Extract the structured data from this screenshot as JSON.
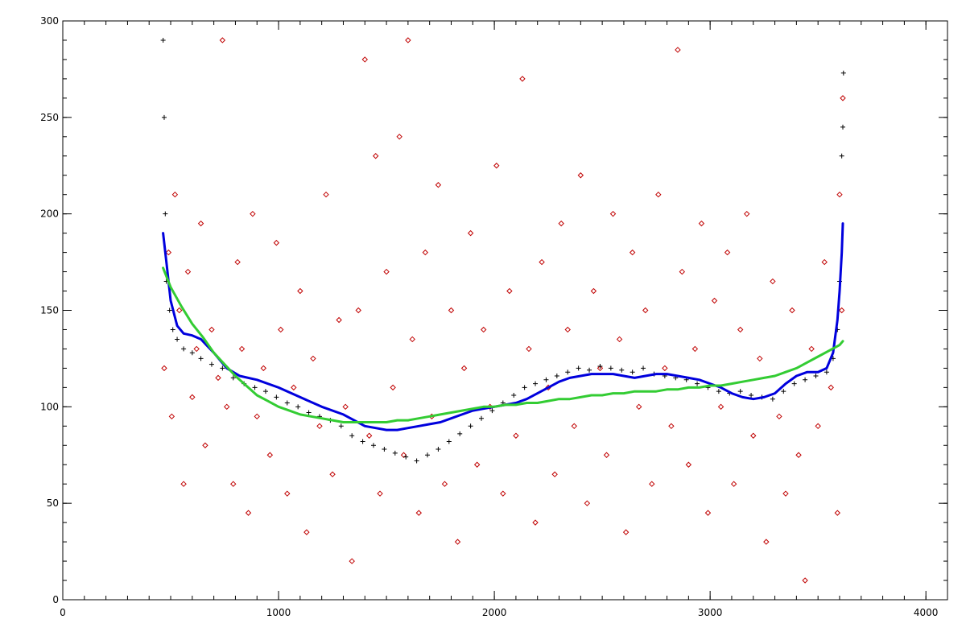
{
  "chart_data": {
    "type": "scatter",
    "title": "",
    "xlabel": "",
    "ylabel": "",
    "xlim": [
      0,
      4100
    ],
    "ylim": [
      0,
      300
    ],
    "grid": false,
    "legend": "none",
    "x_ticks": [
      0,
      1000,
      2000,
      3000,
      4000
    ],
    "x_tick_labels": [
      "0",
      "1000",
      "2000",
      "3000",
      "4000"
    ],
    "y_ticks": [
      0,
      50,
      100,
      150,
      200,
      250,
      300
    ],
    "y_tick_labels": [
      "0",
      "50",
      "100",
      "150",
      "200",
      "250",
      "300"
    ],
    "x_minor_step": 100,
    "y_minor_step": 10,
    "series": [
      {
        "marker": "diamond",
        "color": "#c00000",
        "points": [
          [
            470,
            120
          ],
          [
            490,
            180
          ],
          [
            505,
            95
          ],
          [
            520,
            210
          ],
          [
            540,
            150
          ],
          [
            560,
            60
          ],
          [
            580,
            170
          ],
          [
            600,
            105
          ],
          [
            620,
            130
          ],
          [
            640,
            195
          ],
          [
            660,
            80
          ],
          [
            690,
            140
          ],
          [
            720,
            115
          ],
          [
            740,
            290
          ],
          [
            760,
            100
          ],
          [
            790,
            60
          ],
          [
            810,
            175
          ],
          [
            830,
            130
          ],
          [
            860,
            45
          ],
          [
            880,
            200
          ],
          [
            900,
            95
          ],
          [
            930,
            120
          ],
          [
            960,
            75
          ],
          [
            990,
            185
          ],
          [
            1010,
            140
          ],
          [
            1040,
            55
          ],
          [
            1070,
            110
          ],
          [
            1100,
            160
          ],
          [
            1130,
            35
          ],
          [
            1160,
            125
          ],
          [
            1190,
            90
          ],
          [
            1220,
            210
          ],
          [
            1250,
            65
          ],
          [
            1280,
            145
          ],
          [
            1310,
            100
          ],
          [
            1340,
            20
          ],
          [
            1370,
            150
          ],
          [
            1400,
            280
          ],
          [
            1420,
            85
          ],
          [
            1450,
            230
          ],
          [
            1470,
            55
          ],
          [
            1500,
            170
          ],
          [
            1530,
            110
          ],
          [
            1560,
            240
          ],
          [
            1580,
            75
          ],
          [
            1600,
            290
          ],
          [
            1620,
            135
          ],
          [
            1650,
            45
          ],
          [
            1680,
            180
          ],
          [
            1710,
            95
          ],
          [
            1740,
            215
          ],
          [
            1770,
            60
          ],
          [
            1800,
            150
          ],
          [
            1830,
            30
          ],
          [
            1860,
            120
          ],
          [
            1890,
            190
          ],
          [
            1920,
            70
          ],
          [
            1950,
            140
          ],
          [
            1980,
            100
          ],
          [
            2010,
            225
          ],
          [
            2040,
            55
          ],
          [
            2070,
            160
          ],
          [
            2100,
            85
          ],
          [
            2130,
            270
          ],
          [
            2160,
            130
          ],
          [
            2190,
            40
          ],
          [
            2220,
            175
          ],
          [
            2250,
            110
          ],
          [
            2280,
            65
          ],
          [
            2310,
            195
          ],
          [
            2340,
            140
          ],
          [
            2370,
            90
          ],
          [
            2400,
            220
          ],
          [
            2430,
            50
          ],
          [
            2460,
            160
          ],
          [
            2490,
            120
          ],
          [
            2520,
            75
          ],
          [
            2550,
            200
          ],
          [
            2580,
            135
          ],
          [
            2610,
            35
          ],
          [
            2640,
            180
          ],
          [
            2670,
            100
          ],
          [
            2700,
            150
          ],
          [
            2730,
            60
          ],
          [
            2760,
            210
          ],
          [
            2790,
            120
          ],
          [
            2820,
            90
          ],
          [
            2850,
            285
          ],
          [
            2870,
            170
          ],
          [
            2900,
            70
          ],
          [
            2930,
            130
          ],
          [
            2960,
            195
          ],
          [
            2990,
            45
          ],
          [
            3020,
            155
          ],
          [
            3050,
            100
          ],
          [
            3080,
            180
          ],
          [
            3110,
            60
          ],
          [
            3140,
            140
          ],
          [
            3170,
            200
          ],
          [
            3200,
            85
          ],
          [
            3230,
            125
          ],
          [
            3260,
            30
          ],
          [
            3290,
            165
          ],
          [
            3320,
            95
          ],
          [
            3350,
            55
          ],
          [
            3380,
            150
          ],
          [
            3410,
            75
          ],
          [
            3440,
            10
          ],
          [
            3470,
            130
          ],
          [
            3500,
            90
          ],
          [
            3530,
            175
          ],
          [
            3560,
            110
          ],
          [
            3590,
            45
          ],
          [
            3600,
            210
          ],
          [
            3610,
            150
          ],
          [
            3615,
            260
          ]
        ]
      },
      {
        "marker": "plus",
        "color": "#000000",
        "points": [
          [
            465,
            290
          ],
          [
            470,
            250
          ],
          [
            475,
            200
          ],
          [
            480,
            165
          ],
          [
            495,
            150
          ],
          [
            510,
            140
          ],
          [
            530,
            135
          ],
          [
            560,
            130
          ],
          [
            600,
            128
          ],
          [
            640,
            125
          ],
          [
            690,
            122
          ],
          [
            740,
            120
          ],
          [
            790,
            115
          ],
          [
            840,
            112
          ],
          [
            890,
            110
          ],
          [
            940,
            108
          ],
          [
            990,
            105
          ],
          [
            1040,
            102
          ],
          [
            1090,
            100
          ],
          [
            1140,
            97
          ],
          [
            1190,
            95
          ],
          [
            1240,
            93
          ],
          [
            1290,
            90
          ],
          [
            1340,
            85
          ],
          [
            1390,
            82
          ],
          [
            1440,
            80
          ],
          [
            1490,
            78
          ],
          [
            1540,
            76
          ],
          [
            1590,
            74
          ],
          [
            1640,
            72
          ],
          [
            1690,
            75
          ],
          [
            1740,
            78
          ],
          [
            1790,
            82
          ],
          [
            1840,
            86
          ],
          [
            1890,
            90
          ],
          [
            1940,
            94
          ],
          [
            1990,
            98
          ],
          [
            2040,
            102
          ],
          [
            2090,
            106
          ],
          [
            2140,
            110
          ],
          [
            2190,
            112
          ],
          [
            2240,
            114
          ],
          [
            2290,
            116
          ],
          [
            2340,
            118
          ],
          [
            2390,
            120
          ],
          [
            2440,
            119
          ],
          [
            2490,
            121
          ],
          [
            2540,
            120
          ],
          [
            2590,
            119
          ],
          [
            2640,
            118
          ],
          [
            2690,
            120
          ],
          [
            2740,
            117
          ],
          [
            2790,
            116
          ],
          [
            2840,
            115
          ],
          [
            2890,
            114
          ],
          [
            2940,
            112
          ],
          [
            2990,
            110
          ],
          [
            3040,
            108
          ],
          [
            3090,
            107
          ],
          [
            3140,
            108
          ],
          [
            3190,
            106
          ],
          [
            3240,
            105
          ],
          [
            3290,
            104
          ],
          [
            3340,
            108
          ],
          [
            3390,
            112
          ],
          [
            3440,
            114
          ],
          [
            3490,
            116
          ],
          [
            3540,
            118
          ],
          [
            3570,
            125
          ],
          [
            3590,
            140
          ],
          [
            3600,
            165
          ],
          [
            3610,
            230
          ],
          [
            3615,
            245
          ],
          [
            3618,
            273
          ]
        ]
      }
    ],
    "lines": [
      {
        "color": "#0000dd",
        "points": [
          [
            465,
            190
          ],
          [
            480,
            175
          ],
          [
            500,
            155
          ],
          [
            530,
            142
          ],
          [
            560,
            138
          ],
          [
            600,
            137
          ],
          [
            640,
            135
          ],
          [
            700,
            128
          ],
          [
            760,
            120
          ],
          [
            820,
            116
          ],
          [
            900,
            114
          ],
          [
            1000,
            110
          ],
          [
            1100,
            105
          ],
          [
            1200,
            100
          ],
          [
            1300,
            96
          ],
          [
            1350,
            93
          ],
          [
            1400,
            90
          ],
          [
            1450,
            89
          ],
          [
            1500,
            88
          ],
          [
            1550,
            88
          ],
          [
            1600,
            89
          ],
          [
            1650,
            90
          ],
          [
            1700,
            91
          ],
          [
            1750,
            92
          ],
          [
            1800,
            94
          ],
          [
            1850,
            96
          ],
          [
            1900,
            98
          ],
          [
            1950,
            99
          ],
          [
            2000,
            100
          ],
          [
            2050,
            101
          ],
          [
            2100,
            102
          ],
          [
            2150,
            104
          ],
          [
            2200,
            107
          ],
          [
            2250,
            110
          ],
          [
            2300,
            113
          ],
          [
            2350,
            115
          ],
          [
            2400,
            116
          ],
          [
            2450,
            117
          ],
          [
            2500,
            117
          ],
          [
            2550,
            117
          ],
          [
            2600,
            116
          ],
          [
            2650,
            115
          ],
          [
            2700,
            116
          ],
          [
            2750,
            117
          ],
          [
            2800,
            117
          ],
          [
            2850,
            116
          ],
          [
            2900,
            115
          ],
          [
            2950,
            114
          ],
          [
            3000,
            112
          ],
          [
            3050,
            110
          ],
          [
            3100,
            107
          ],
          [
            3150,
            105
          ],
          [
            3200,
            104
          ],
          [
            3250,
            105
          ],
          [
            3300,
            107
          ],
          [
            3350,
            112
          ],
          [
            3400,
            116
          ],
          [
            3450,
            118
          ],
          [
            3500,
            118
          ],
          [
            3540,
            120
          ],
          [
            3570,
            128
          ],
          [
            3590,
            145
          ],
          [
            3600,
            160
          ],
          [
            3610,
            180
          ],
          [
            3615,
            195
          ]
        ]
      },
      {
        "color": "#33cc33",
        "points": [
          [
            465,
            172
          ],
          [
            500,
            162
          ],
          [
            550,
            152
          ],
          [
            600,
            143
          ],
          [
            650,
            136
          ],
          [
            700,
            128
          ],
          [
            750,
            122
          ],
          [
            800,
            116
          ],
          [
            850,
            111
          ],
          [
            900,
            106
          ],
          [
            950,
            103
          ],
          [
            1000,
            100
          ],
          [
            1050,
            98
          ],
          [
            1100,
            96
          ],
          [
            1150,
            95
          ],
          [
            1200,
            94
          ],
          [
            1250,
            93
          ],
          [
            1300,
            92
          ],
          [
            1350,
            92
          ],
          [
            1400,
            92
          ],
          [
            1450,
            92
          ],
          [
            1500,
            92
          ],
          [
            1550,
            93
          ],
          [
            1600,
            93
          ],
          [
            1650,
            94
          ],
          [
            1700,
            95
          ],
          [
            1750,
            96
          ],
          [
            1800,
            97
          ],
          [
            1850,
            98
          ],
          [
            1900,
            99
          ],
          [
            1950,
            100
          ],
          [
            2000,
            100
          ],
          [
            2050,
            101
          ],
          [
            2100,
            101
          ],
          [
            2150,
            102
          ],
          [
            2200,
            102
          ],
          [
            2250,
            103
          ],
          [
            2300,
            104
          ],
          [
            2350,
            104
          ],
          [
            2400,
            105
          ],
          [
            2450,
            106
          ],
          [
            2500,
            106
          ],
          [
            2550,
            107
          ],
          [
            2600,
            107
          ],
          [
            2650,
            108
          ],
          [
            2700,
            108
          ],
          [
            2750,
            108
          ],
          [
            2800,
            109
          ],
          [
            2850,
            109
          ],
          [
            2900,
            110
          ],
          [
            2950,
            110
          ],
          [
            3000,
            111
          ],
          [
            3050,
            111
          ],
          [
            3100,
            112
          ],
          [
            3150,
            113
          ],
          [
            3200,
            114
          ],
          [
            3250,
            115
          ],
          [
            3300,
            116
          ],
          [
            3350,
            118
          ],
          [
            3400,
            120
          ],
          [
            3450,
            123
          ],
          [
            3500,
            126
          ],
          [
            3550,
            129
          ],
          [
            3600,
            132
          ],
          [
            3615,
            134
          ]
        ]
      }
    ]
  }
}
